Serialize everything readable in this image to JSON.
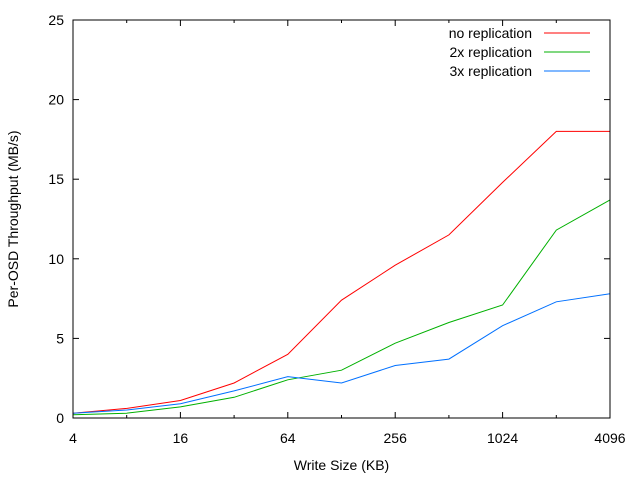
{
  "chart_data": {
    "type": "line",
    "title": "",
    "xlabel": "Write Size (KB)",
    "ylabel": "Per-OSD Throughput (MB/s)",
    "x_scale": "log2",
    "xlim": [
      4,
      4096
    ],
    "ylim": [
      0,
      25
    ],
    "x_ticks": [
      4,
      16,
      64,
      256,
      1024,
      4096
    ],
    "y_ticks": [
      0,
      5,
      10,
      15,
      20,
      25
    ],
    "grid": false,
    "legend_position": "top-right",
    "series": [
      {
        "name": "no replication",
        "color": "#ff0000",
        "x": [
          4,
          8,
          16,
          32,
          64,
          128,
          256,
          512,
          1024,
          2048,
          4096
        ],
        "y": [
          0.3,
          0.6,
          1.1,
          2.2,
          4.0,
          7.4,
          9.6,
          11.5,
          14.8,
          18.0,
          18.0
        ]
      },
      {
        "name": "2x replication",
        "color": "#00b000",
        "x": [
          4,
          8,
          16,
          32,
          64,
          128,
          256,
          512,
          1024,
          2048,
          4096
        ],
        "y": [
          0.2,
          0.3,
          0.7,
          1.3,
          2.4,
          3.0,
          4.7,
          6.0,
          7.1,
          11.8,
          13.7
        ]
      },
      {
        "name": "3x replication",
        "color": "#0070ff",
        "x": [
          4,
          8,
          16,
          32,
          64,
          128,
          256,
          512,
          1024,
          2048,
          4096
        ],
        "y": [
          0.3,
          0.5,
          0.9,
          1.7,
          2.6,
          2.2,
          3.3,
          3.7,
          5.8,
          7.3,
          7.8
        ]
      }
    ]
  }
}
